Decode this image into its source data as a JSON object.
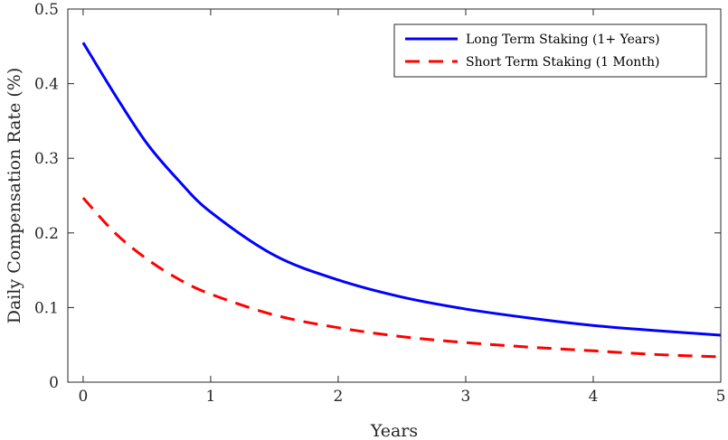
{
  "chart_data": {
    "type": "line",
    "title": "",
    "xlabel": "Years",
    "ylabel": "Daily Compensation Rate (%)",
    "xlim": [
      -0.12,
      5
    ],
    "ylim": [
      0,
      0.5
    ],
    "xticks": [
      0,
      1,
      2,
      3,
      4,
      5
    ],
    "xtick_labels": [
      "0",
      "1",
      "2",
      "3",
      "4",
      "5"
    ],
    "yticks": [
      0,
      0.1,
      0.2,
      0.3,
      0.4,
      0.5
    ],
    "ytick_labels": [
      "0",
      "0.1",
      "0.2",
      "0.3",
      "0.4",
      "0.5"
    ],
    "grid": false,
    "legend_position": "top-right",
    "series": [
      {
        "name": "Long Term Staking (1+ Years)",
        "color": "#0000ff",
        "dash": "solid",
        "x": [
          0,
          0.25,
          0.5,
          0.75,
          1,
          1.5,
          2,
          2.5,
          3,
          3.5,
          4,
          4.5,
          5
        ],
        "values": [
          0.455,
          0.385,
          0.32,
          0.27,
          0.228,
          0.17,
          0.137,
          0.114,
          0.098,
          0.086,
          0.076,
          0.069,
          0.063
        ]
      },
      {
        "name": "Short Term Staking (1 Month)",
        "color": "#ff0000",
        "dash": "dashed",
        "x": [
          0,
          0.25,
          0.5,
          0.75,
          1,
          1.5,
          2,
          2.5,
          3,
          3.5,
          4,
          4.5,
          5
        ],
        "values": [
          0.247,
          0.2,
          0.165,
          0.138,
          0.118,
          0.09,
          0.073,
          0.061,
          0.053,
          0.047,
          0.042,
          0.037,
          0.034
        ]
      }
    ]
  }
}
